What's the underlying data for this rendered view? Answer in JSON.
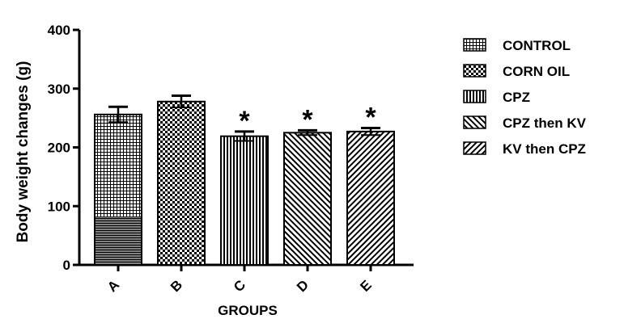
{
  "chart_data": {
    "type": "bar",
    "title": "",
    "xlabel": "GROUPS",
    "ylabel": "Body weight changes (g)",
    "ylim": [
      0,
      400
    ],
    "yticks": [
      0,
      100,
      200,
      300,
      400
    ],
    "grid": false,
    "legend_position": "right",
    "categories": [
      "A",
      "B",
      "C",
      "D",
      "E"
    ],
    "values": [
      256,
      278,
      219,
      225,
      227
    ],
    "error": [
      13,
      10,
      8,
      4,
      6
    ],
    "significance": [
      "",
      "",
      "*",
      "*",
      "*"
    ],
    "series": [
      {
        "name": "CONTROL",
        "pattern": "grid",
        "category": "A"
      },
      {
        "name": "CORN OIL",
        "pattern": "checker",
        "category": "B"
      },
      {
        "name": "CPZ",
        "pattern": "vertical",
        "category": "C"
      },
      {
        "name": "CPZ then KV",
        "pattern": "diag-up",
        "category": "D"
      },
      {
        "name": "KV then CPZ",
        "pattern": "diag-down",
        "category": "E"
      }
    ],
    "colors": {
      "ink": "#000000",
      "background": "#ffffff"
    }
  }
}
